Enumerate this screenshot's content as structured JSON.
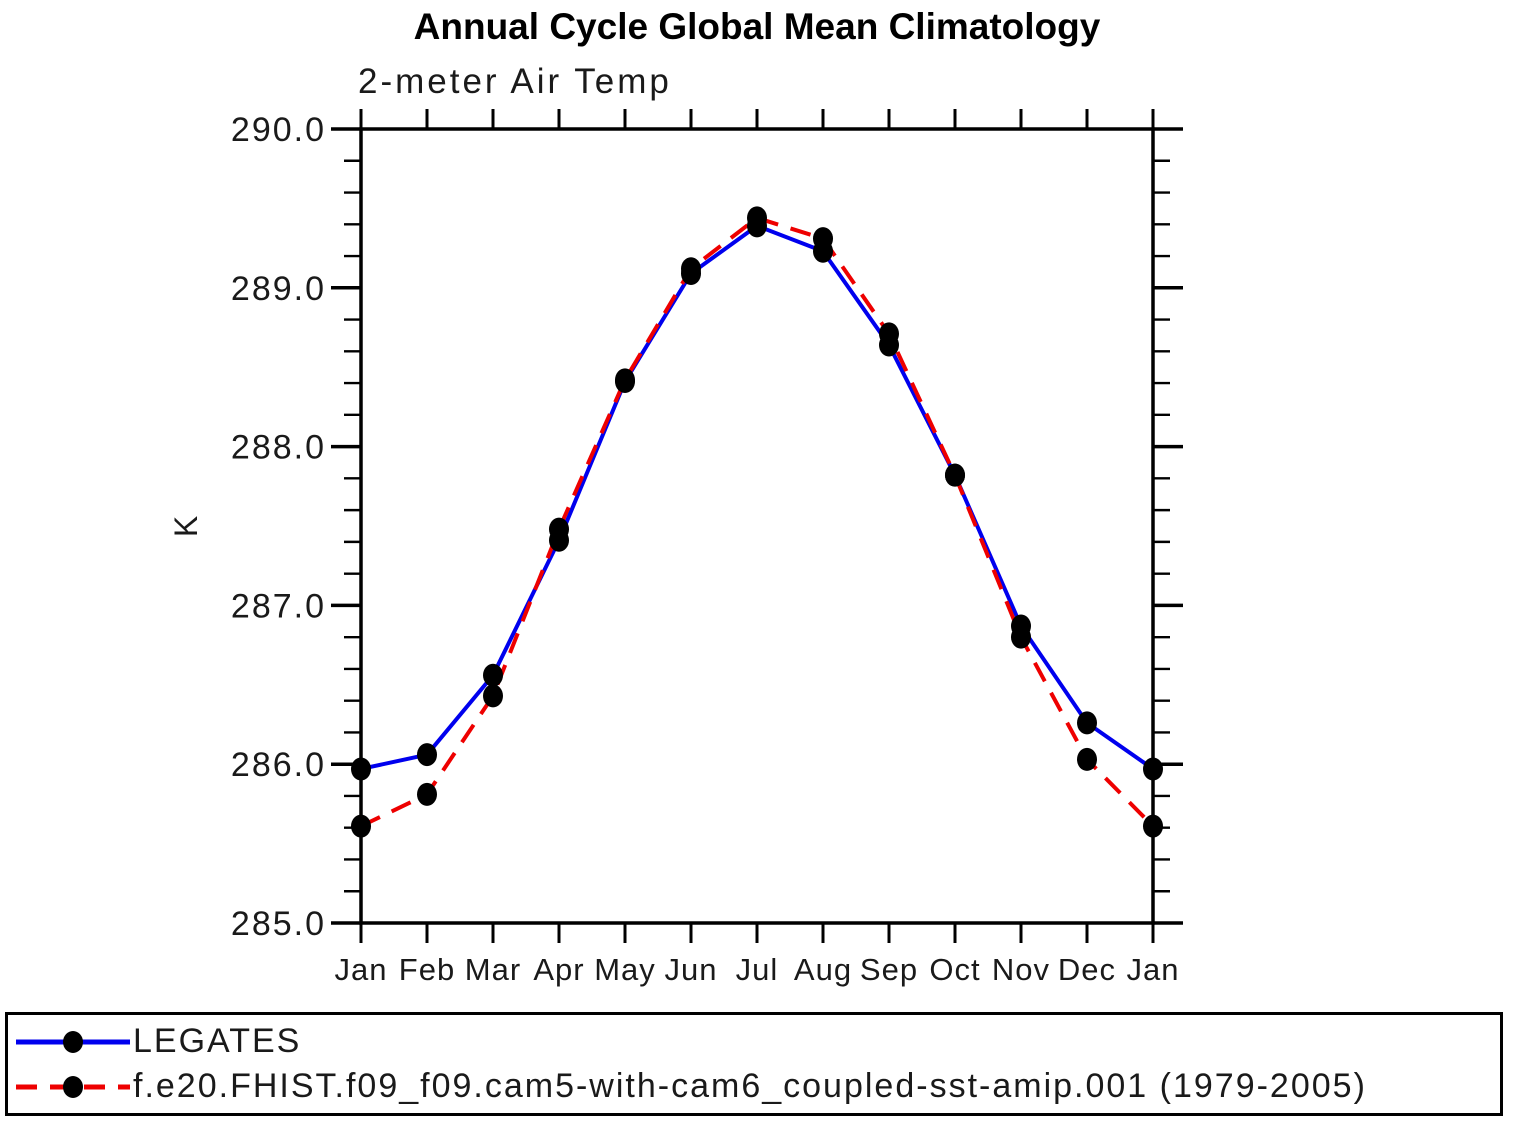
{
  "title": "Annual Cycle Global Mean Climatology",
  "chart_data": {
    "type": "line",
    "title": "Annual Cycle Global Mean Climatology",
    "subtitle": "2-meter Air Temp",
    "ylabel": "K",
    "categories": [
      "Jan",
      "Feb",
      "Mar",
      "Apr",
      "May",
      "Jun",
      "Jul",
      "Aug",
      "Sep",
      "Oct",
      "Nov",
      "Dec",
      "Jan"
    ],
    "ylim": [
      285.0,
      290.0
    ],
    "y_major_tick_labels": [
      "285.0",
      "286.0",
      "287.0",
      "288.0",
      "289.0",
      "290.0"
    ],
    "y_minor_step": 0.2,
    "grid": false,
    "legend_position": "bottom",
    "axis_color": "#000000",
    "marker_color": "#000000",
    "series": [
      {
        "name": "LEGATES",
        "color": "#0000ee",
        "style": "solid",
        "marker": "black-dot",
        "values": [
          285.97,
          286.06,
          286.56,
          287.41,
          288.41,
          289.09,
          289.39,
          289.23,
          288.64,
          287.82,
          286.87,
          286.26,
          285.97
        ]
      },
      {
        "name": "f.e20.FHIST.f09_f09.cam5-with-cam6_coupled-sst-amip.001 (1979-2005)",
        "color": "#ee0000",
        "style": "dashed",
        "marker": "black-dot",
        "values": [
          285.61,
          285.81,
          286.43,
          287.48,
          288.42,
          289.12,
          289.44,
          289.31,
          288.71,
          287.82,
          286.8,
          286.03,
          285.61
        ]
      }
    ]
  }
}
